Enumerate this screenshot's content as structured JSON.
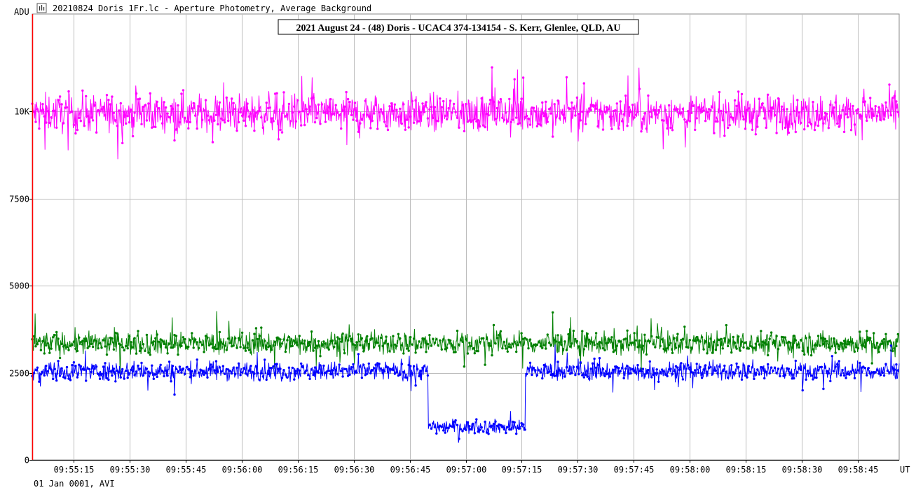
{
  "window": {
    "title": "20210824 Doris 1Fr.lc - Aperture Photometry, Average Background",
    "app_icon": "bar-chart-icon"
  },
  "chart_data": {
    "type": "line",
    "title": "2021 August 24 - (48) Doris - UCAC4 374-134154 - S. Kerr, Glenlee, QLD, AU",
    "ylabel": "ADU",
    "xlabel": "UT",
    "footer": "01 Jan 0001, AVI",
    "ylim": [
      0,
      12800
    ],
    "xlim": [
      "09:55:04",
      "09:58:56"
    ],
    "y_ticks": [
      {
        "value": 0,
        "label": "0"
      },
      {
        "value": 2500,
        "label": "2500"
      },
      {
        "value": 5000,
        "label": "5000"
      },
      {
        "value": 7500,
        "label": "7500"
      },
      {
        "value": 10000,
        "label": "10K"
      }
    ],
    "x_ticks": [
      "09:55:15",
      "09:55:30",
      "09:55:45",
      "09:56:00",
      "09:56:15",
      "09:56:30",
      "09:56:45",
      "09:57:00",
      "09:57:15",
      "09:57:30",
      "09:57:45",
      "09:58:00",
      "09:58:15",
      "09:58:30",
      "09:58:45"
    ],
    "grid": true,
    "legend": "none",
    "series": [
      {
        "color": "#ff00ff",
        "baseline": 9950,
        "noise": 380,
        "events": [],
        "sample_x": [
          "09:55:15",
          "09:55:45",
          "09:56:15",
          "09:56:45",
          "09:57:15",
          "09:57:45",
          "09:58:15",
          "09:58:45"
        ],
        "sample_y": [
          9800,
          9900,
          9950,
          9950,
          10050,
          10000,
          10050,
          10100
        ]
      },
      {
        "color": "#008000",
        "baseline": 3350,
        "noise": 230,
        "events": [],
        "sample_x": [
          "09:55:15",
          "09:55:45",
          "09:56:15",
          "09:56:45",
          "09:57:15",
          "09:57:45",
          "09:58:15",
          "09:58:45"
        ],
        "sample_y": [
          3350,
          3350,
          3350,
          3350,
          3350,
          3350,
          3350,
          3350
        ]
      },
      {
        "color": "#0000ff",
        "baseline": 2550,
        "noise": 190,
        "events": [
          {
            "start": "09:56:50",
            "end": "09:57:16",
            "level": 950,
            "noise": 140
          }
        ],
        "sample_x": [
          "09:55:15",
          "09:55:45",
          "09:56:15",
          "09:56:45",
          "09:57:00",
          "09:57:15",
          "09:57:45",
          "09:58:15",
          "09:58:45"
        ],
        "sample_y": [
          2550,
          2550,
          2550,
          2550,
          950,
          950,
          2550,
          2550,
          2550
        ]
      }
    ],
    "marker_line_color": "#ff0000"
  }
}
